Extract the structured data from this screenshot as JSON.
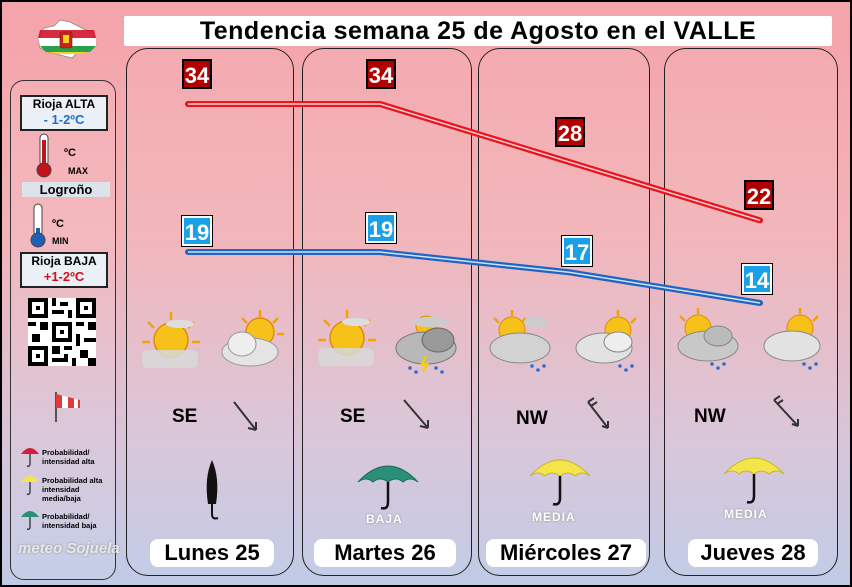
{
  "title": "Tendencia semana 25 de Agosto en el VALLE",
  "legend": {
    "rioja_alta_label": "Rioja ALTA",
    "rioja_alta_delta": "- 1-2ºC",
    "max_label_c": "ºC",
    "max_label": "MAX",
    "logrono": "Logroño",
    "min_label_c": "ºC",
    "min_label": "MIN",
    "rioja_baja_label": "Rioja BAJA",
    "rioja_baja_delta": "+1-2ºC",
    "prob_high": "Probabilidad/ intensidad alta",
    "prob_med": "Probabilidad alta intensidad media/baja",
    "prob_low": "Probabilidad/ intensidad baja",
    "brand": "meteo Sojuela"
  },
  "colors": {
    "max_line": "#e8141e",
    "min_line": "#1f66c2",
    "max_box": "#b00000",
    "min_box": "#1aa0e6",
    "umbrella_low": "#2a8f77",
    "umbrella_med": "#f4e64a",
    "umbrella_high": "#d41e3c"
  },
  "days": [
    {
      "label": "Lunes 25",
      "max": 34,
      "min": 19,
      "wind": "SE",
      "wind_icon": "arrow-nw-se",
      "sky_icons": [
        "sun-haze-icon",
        "partly-cloudy-icon"
      ],
      "precip_icon": "closed-umbrella-icon",
      "precip_label": ""
    },
    {
      "label": "Martes 26",
      "max": 34,
      "min": 19,
      "wind": "SE",
      "wind_icon": "arrow-nw-se",
      "sky_icons": [
        "sun-haze-icon",
        "storm-cloud-icon"
      ],
      "precip_icon": "umbrella-low-icon",
      "precip_label": "BAJA"
    },
    {
      "label": "Miércoles 27",
      "max": 28,
      "min": 17,
      "wind": "NW",
      "wind_icon": "arrow-ne-sw",
      "sky_icons": [
        "cloudy-rain-icon",
        "cloudy-rain-icon"
      ],
      "precip_icon": "umbrella-med-icon",
      "precip_label": "MEDIA"
    },
    {
      "label": "Jueves 28",
      "max": 22,
      "min": 14,
      "wind": "NW",
      "wind_icon": "arrow-ne-sw",
      "sky_icons": [
        "cloudy-rain-icon",
        "cloudy-rain-icon"
      ],
      "precip_icon": "umbrella-med-icon",
      "precip_label": "MEDIA"
    }
  ]
}
